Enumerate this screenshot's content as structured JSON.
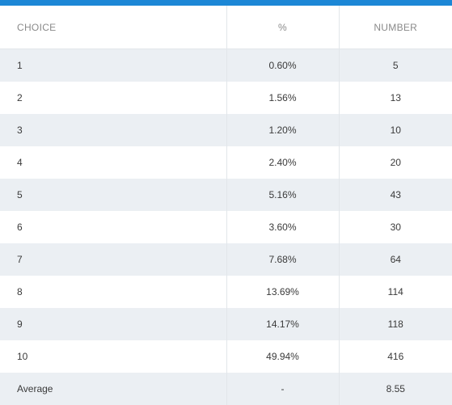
{
  "table": {
    "headers": {
      "choice": "CHOICE",
      "percent": "%",
      "number": "NUMBER"
    },
    "rows": [
      {
        "choice": "1",
        "percent": "0.60%",
        "number": "5"
      },
      {
        "choice": "2",
        "percent": "1.56%",
        "number": "13"
      },
      {
        "choice": "3",
        "percent": "1.20%",
        "number": "10"
      },
      {
        "choice": "4",
        "percent": "2.40%",
        "number": "20"
      },
      {
        "choice": "5",
        "percent": "5.16%",
        "number": "43"
      },
      {
        "choice": "6",
        "percent": "3.60%",
        "number": "30"
      },
      {
        "choice": "7",
        "percent": "7.68%",
        "number": "64"
      },
      {
        "choice": "8",
        "percent": "13.69%",
        "number": "114"
      },
      {
        "choice": "9",
        "percent": "14.17%",
        "number": "118"
      },
      {
        "choice": "10",
        "percent": "49.94%",
        "number": "416"
      },
      {
        "choice": "Average",
        "percent": "-",
        "number": "8.55"
      }
    ]
  },
  "colors": {
    "accent": "#1c87d6",
    "stripe": "#ebeff3",
    "border": "#e2e6ea"
  }
}
